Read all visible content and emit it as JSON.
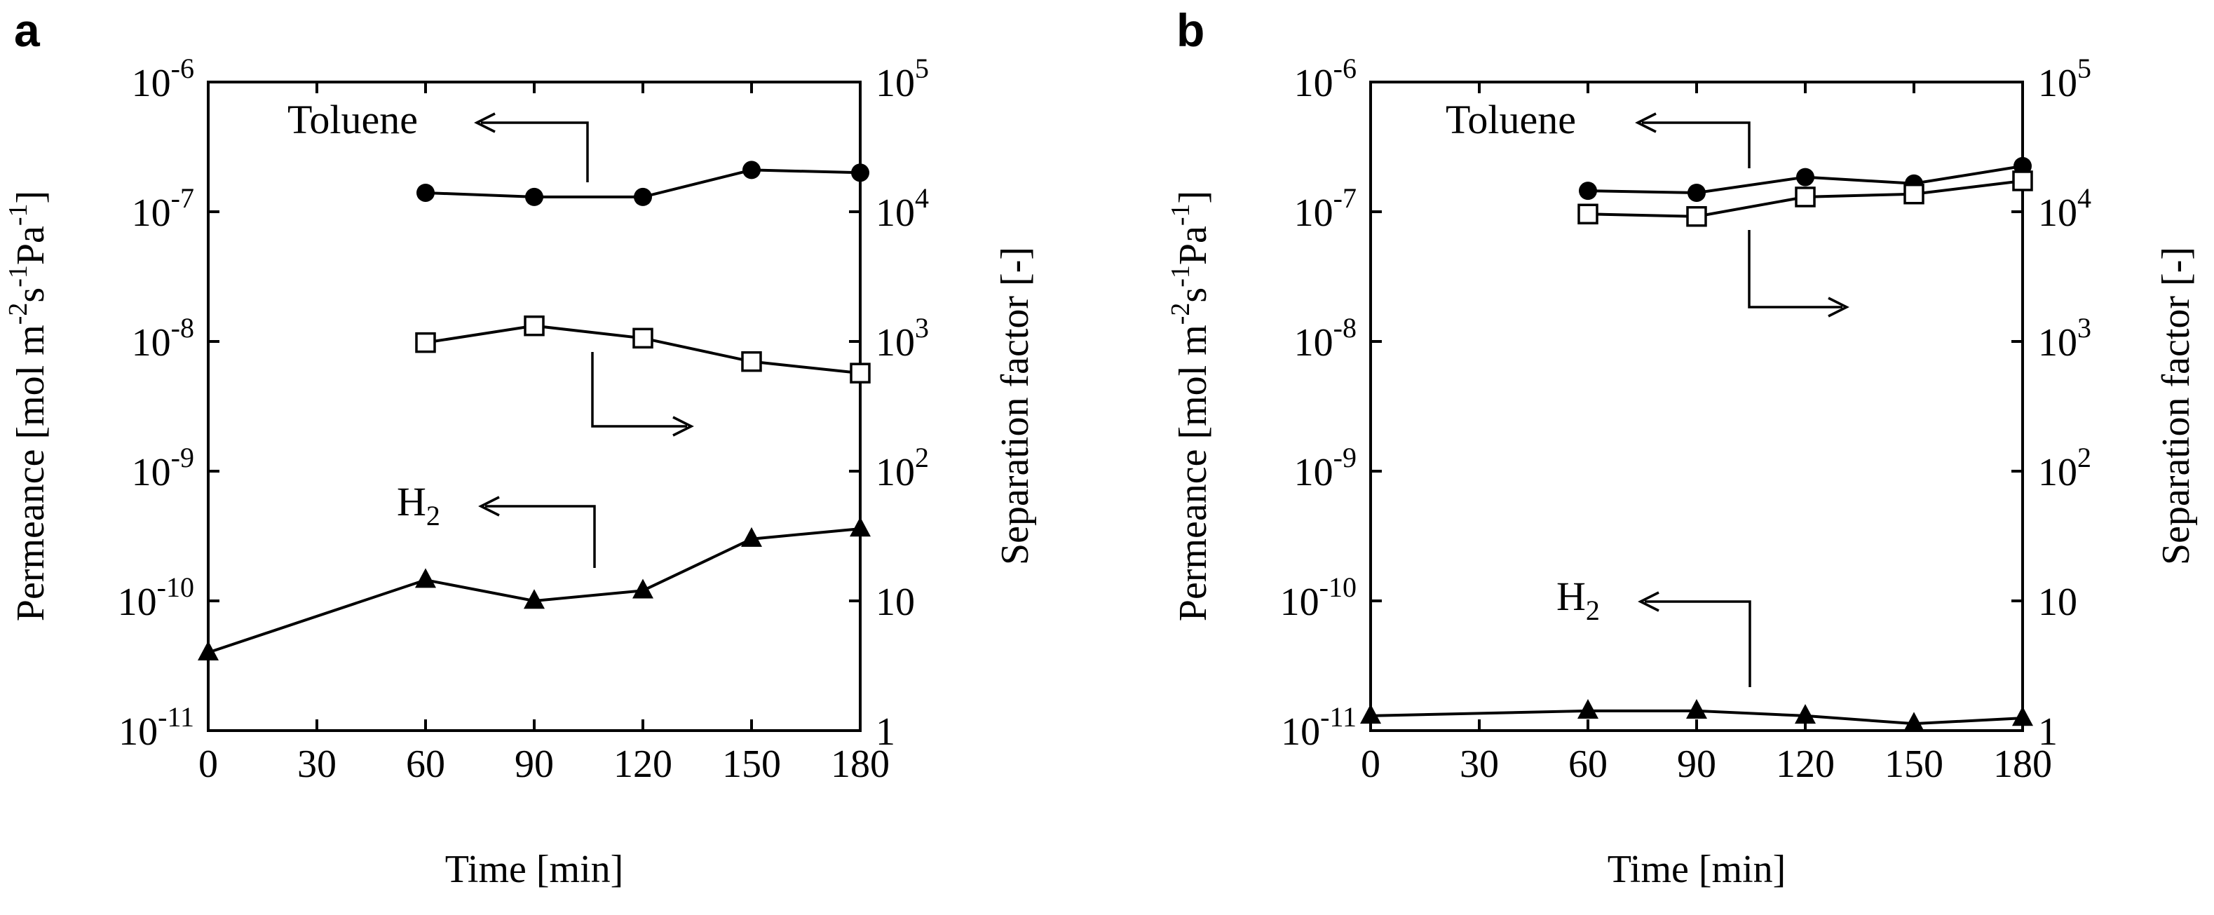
{
  "chart_data": [
    {
      "panel": "a",
      "type": "line",
      "xlabel": "Time [min]",
      "ylabel_left": "Permeance [mol m-2s-1Pa-1]",
      "ylabel_right": "Separation factor [-]",
      "xlim": [
        0,
        180
      ],
      "xticks": [
        "0",
        "30",
        "60",
        "90",
        "120",
        "150",
        "180"
      ],
      "ylim_left": [
        1e-11,
        1e-06
      ],
      "yscale": "log",
      "yticks_left": [
        "10-11",
        "10-10",
        "10-9",
        "10-8",
        "10-7",
        "10-6"
      ],
      "ylim_right": [
        1,
        100000
      ],
      "yticks_right": [
        "1",
        "10",
        "102",
        "103",
        "104",
        "105"
      ],
      "series": [
        {
          "name": "Toluene",
          "axis": "left",
          "marker": "filled-circle",
          "x": [
            60,
            90,
            120,
            150,
            180
          ],
          "values": [
            1.4e-07,
            1.3e-07,
            1.3e-07,
            2.1e-07,
            2e-07
          ]
        },
        {
          "name": "Separation factor",
          "axis": "right",
          "marker": "open-square",
          "x": [
            60,
            90,
            120,
            150,
            180
          ],
          "values": [
            980,
            1320,
            1060,
            700,
            570
          ]
        },
        {
          "name": "H2",
          "axis": "left",
          "marker": "filled-triangle",
          "x": [
            0,
            60,
            90,
            120,
            150,
            180
          ],
          "values": [
            4e-11,
            1.45e-10,
            1e-10,
            1.2e-10,
            3e-10,
            3.6e-10
          ]
        }
      ],
      "annotations": [
        {
          "text": "Toluene",
          "points_to": "left axis"
        },
        {
          "text": "H2",
          "points_to": "left axis"
        },
        {
          "text": "",
          "points_to": "right axis"
        }
      ]
    },
    {
      "panel": "b",
      "type": "line",
      "xlabel": "Time [min]",
      "ylabel_left": "Permeance [mol m-2s-1Pa-1]",
      "ylabel_right": "Separation factor [-]",
      "xlim": [
        0,
        180
      ],
      "xticks": [
        "0",
        "30",
        "60",
        "90",
        "120",
        "150",
        "180"
      ],
      "ylim_left": [
        1e-11,
        1e-06
      ],
      "yscale": "log",
      "yticks_left": [
        "10-11",
        "10-10",
        "10-9",
        "10-8",
        "10-7",
        "10-6"
      ],
      "ylim_right": [
        1,
        100000
      ],
      "yticks_right": [
        "1",
        "10",
        "102",
        "103",
        "104",
        "105"
      ],
      "series": [
        {
          "name": "Toluene",
          "axis": "left",
          "marker": "filled-circle",
          "x": [
            60,
            90,
            120,
            150,
            180
          ],
          "values": [
            1.45e-07,
            1.4e-07,
            1.85e-07,
            1.65e-07,
            2.25e-07
          ]
        },
        {
          "name": "Separation factor",
          "axis": "right",
          "marker": "open-square",
          "x": [
            60,
            90,
            120,
            150,
            180
          ],
          "values": [
            9600,
            9200,
            13000,
            13700,
            17300
          ]
        },
        {
          "name": "H2",
          "axis": "left",
          "marker": "filled-triangle",
          "x": [
            0,
            60,
            90,
            120,
            150,
            180
          ],
          "values": [
            1.3e-11,
            1.42e-11,
            1.42e-11,
            1.3e-11,
            1.13e-11,
            1.25e-11
          ]
        }
      ],
      "annotations": [
        {
          "text": "Toluene",
          "points_to": "left axis"
        },
        {
          "text": "H2",
          "points_to": "left axis"
        },
        {
          "text": "",
          "points_to": "right axis"
        }
      ]
    }
  ],
  "labels": {
    "panel_a": "a",
    "panel_b": "b",
    "xlabel": "Time [min]",
    "ylabel_left_prefix": "Permeance [mol m",
    "ylabel_left_sup1": "-2",
    "ylabel_left_mid1": "s",
    "ylabel_left_sup2": "-1",
    "ylabel_left_mid2": "Pa",
    "ylabel_left_sup3": "-1",
    "ylabel_left_suffix": "]",
    "ylabel_right": "Separation factor [-]",
    "toluene": "Toluene",
    "h2_base": "H",
    "h2_sub": "2",
    "tick_base": "10"
  }
}
